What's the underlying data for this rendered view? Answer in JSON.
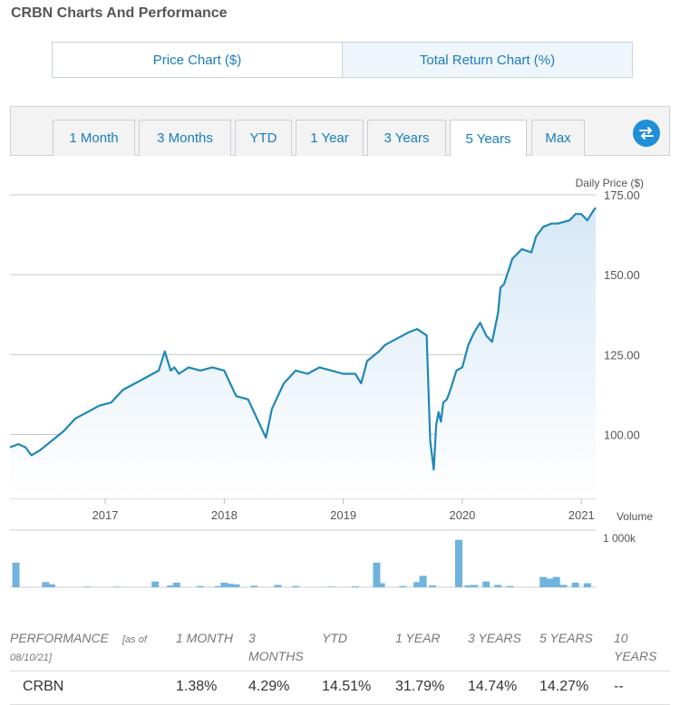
{
  "page": {
    "title": "CRBN Charts And Performance"
  },
  "chart_toggle": {
    "price_label": "Price Chart ($)",
    "total_return_label": "Total Return Chart (%)"
  },
  "range_tabs": [
    {
      "label": "1 Month"
    },
    {
      "label": "3 Months"
    },
    {
      "label": "YTD"
    },
    {
      "label": "1 Year"
    },
    {
      "label": "3 Years"
    },
    {
      "label": "5 Years",
      "active": true
    },
    {
      "label": "Max"
    }
  ],
  "swap_icon": "swap-arrows-icon",
  "colors": {
    "accent": "#1a7dbb",
    "line": "#1f87b5",
    "fill": "#e6f1fa",
    "bar": "#6fb3df"
  },
  "chart_data": [
    {
      "type": "line",
      "ylabel": "Daily Price ($)",
      "ylim": [
        80,
        175
      ],
      "yticks": [
        {
          "v": 100,
          "label": "100.00"
        },
        {
          "v": 125,
          "label": "125.00"
        },
        {
          "v": 150,
          "label": "150.00"
        },
        {
          "v": 175,
          "label": "175.00"
        }
      ],
      "xlim": [
        2016.2,
        2021.12
      ],
      "xticks": [
        {
          "v": 2017,
          "label": "2017"
        },
        {
          "v": 2018,
          "label": "2018"
        },
        {
          "v": 2019,
          "label": "2019"
        },
        {
          "v": 2020,
          "label": "2020"
        },
        {
          "v": 2021,
          "label": "2021"
        }
      ],
      "x": [
        2016.2,
        2016.27,
        2016.33,
        2016.38,
        2016.45,
        2016.55,
        2016.65,
        2016.75,
        2016.85,
        2016.95,
        2017.05,
        2017.15,
        2017.25,
        2017.35,
        2017.45,
        2017.5,
        2017.55,
        2017.58,
        2017.62,
        2017.7,
        2017.8,
        2017.9,
        2018.0,
        2018.05,
        2018.1,
        2018.2,
        2018.3,
        2018.35,
        2018.4,
        2018.45,
        2018.5,
        2018.55,
        2018.6,
        2018.7,
        2018.8,
        2018.9,
        2019.0,
        2019.1,
        2019.15,
        2019.2,
        2019.3,
        2019.35,
        2019.45,
        2019.55,
        2019.62,
        2019.7,
        2019.73,
        2019.76,
        2019.78,
        2019.8,
        2019.82,
        2019.84,
        2019.87,
        2019.9,
        2019.95,
        2020.0,
        2020.05,
        2020.1,
        2020.15,
        2020.2,
        2020.25,
        2020.3,
        2020.32,
        2020.35,
        2020.42,
        2020.5,
        2020.58,
        2020.62,
        2020.68,
        2020.75,
        2020.8,
        2020.9,
        2020.95,
        2021.0,
        2021.05,
        2021.1,
        2021.12
      ],
      "y": [
        96,
        97,
        96,
        93.5,
        95,
        98,
        101,
        105,
        107,
        109,
        110,
        114,
        116,
        118,
        120,
        126,
        120,
        121,
        119,
        121,
        120,
        121,
        120,
        116,
        112,
        111,
        103,
        99,
        108,
        112,
        116,
        118,
        120,
        119,
        121,
        120,
        119,
        119,
        116,
        123,
        126,
        128,
        130,
        132,
        133,
        131,
        98,
        89,
        103,
        107,
        104,
        110,
        111,
        114,
        120,
        121,
        128,
        132,
        135,
        131,
        129,
        138,
        146,
        147,
        155,
        158,
        157,
        162,
        165,
        166,
        166,
        167,
        169,
        169,
        167,
        170,
        171
      ],
      "volume_label": "Volume",
      "volume_tick": "1 000k",
      "volume_max": 1000,
      "volumes": [
        {
          "x": 2016.25,
          "v": 430
        },
        {
          "x": 2016.5,
          "v": 90
        },
        {
          "x": 2016.55,
          "v": 50
        },
        {
          "x": 2016.85,
          "v": 10
        },
        {
          "x": 2017.1,
          "v": 10
        },
        {
          "x": 2017.42,
          "v": 100
        },
        {
          "x": 2017.55,
          "v": 30
        },
        {
          "x": 2017.6,
          "v": 80
        },
        {
          "x": 2017.8,
          "v": 20
        },
        {
          "x": 2017.95,
          "v": 20
        },
        {
          "x": 2018.0,
          "v": 80
        },
        {
          "x": 2018.05,
          "v": 60
        },
        {
          "x": 2018.1,
          "v": 50
        },
        {
          "x": 2018.25,
          "v": 25
        },
        {
          "x": 2018.45,
          "v": 40
        },
        {
          "x": 2018.6,
          "v": 20
        },
        {
          "x": 2018.9,
          "v": 10
        },
        {
          "x": 2019.1,
          "v": 15
        },
        {
          "x": 2019.28,
          "v": 430
        },
        {
          "x": 2019.32,
          "v": 70
        },
        {
          "x": 2019.5,
          "v": 20
        },
        {
          "x": 2019.62,
          "v": 90
        },
        {
          "x": 2019.67,
          "v": 200
        },
        {
          "x": 2019.75,
          "v": 30
        },
        {
          "x": 2019.97,
          "v": 830
        },
        {
          "x": 2020.05,
          "v": 30
        },
        {
          "x": 2020.1,
          "v": 40
        },
        {
          "x": 2020.2,
          "v": 100
        },
        {
          "x": 2020.3,
          "v": 40
        },
        {
          "x": 2020.4,
          "v": 20
        },
        {
          "x": 2020.68,
          "v": 180
        },
        {
          "x": 2020.74,
          "v": 150
        },
        {
          "x": 2020.79,
          "v": 180
        },
        {
          "x": 2020.85,
          "v": 40
        },
        {
          "x": 2020.95,
          "v": 80
        },
        {
          "x": 2021.05,
          "v": 70
        }
      ]
    }
  ],
  "performance": {
    "header_label": "PERFORMANCE",
    "header_note": "[as of",
    "header_date": "08/10/21]",
    "columns": [
      "1 MONTH",
      "3",
      "MONTHS",
      "YTD",
      "1 YEAR",
      "3 YEARS",
      "5 YEARS",
      "10",
      "YEARS"
    ],
    "row": {
      "ticker": "CRBN",
      "m1": "1.38%",
      "m3": "4.29%",
      "ytd": "14.51%",
      "y1": "31.79%",
      "y3": "14.74%",
      "y5": "14.27%",
      "y10": "--"
    }
  }
}
